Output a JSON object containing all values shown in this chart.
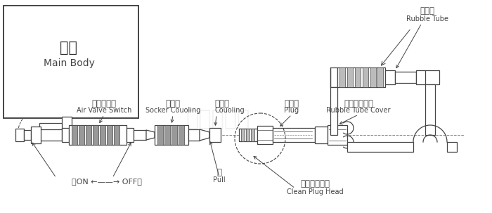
{
  "bg_color": "#ffffff",
  "line_color": "#444444",
  "gray_fill": "#999999",
  "light_gray": "#bbbbbb",
  "labels": {
    "main_body_zh": "主體",
    "main_body_en": "Main Body",
    "air_valve_zh": "空氣開關閥",
    "air_valve_en": "Air Valve Switch",
    "socket_zh": "插　座",
    "socket_en": "Socker Couoling",
    "coupling_zh": "軸　環",
    "coupling_en": "Couoling",
    "plug_zh": "插　頭",
    "plug_en": "Plug",
    "rubber_cover_zh": "橡膠管保護套",
    "rubber_cover_en": "Rubble Tube Cover",
    "rubber_tube_zh": "橡膠管",
    "rubber_tube_en": "Rubble Tube",
    "clean_zh": "必須清潔部分",
    "clean_en": "Clean Plug Head",
    "on_off": "開ON ←——→ OFF關",
    "pull_zh": "推",
    "pull_en": "Pull"
  }
}
